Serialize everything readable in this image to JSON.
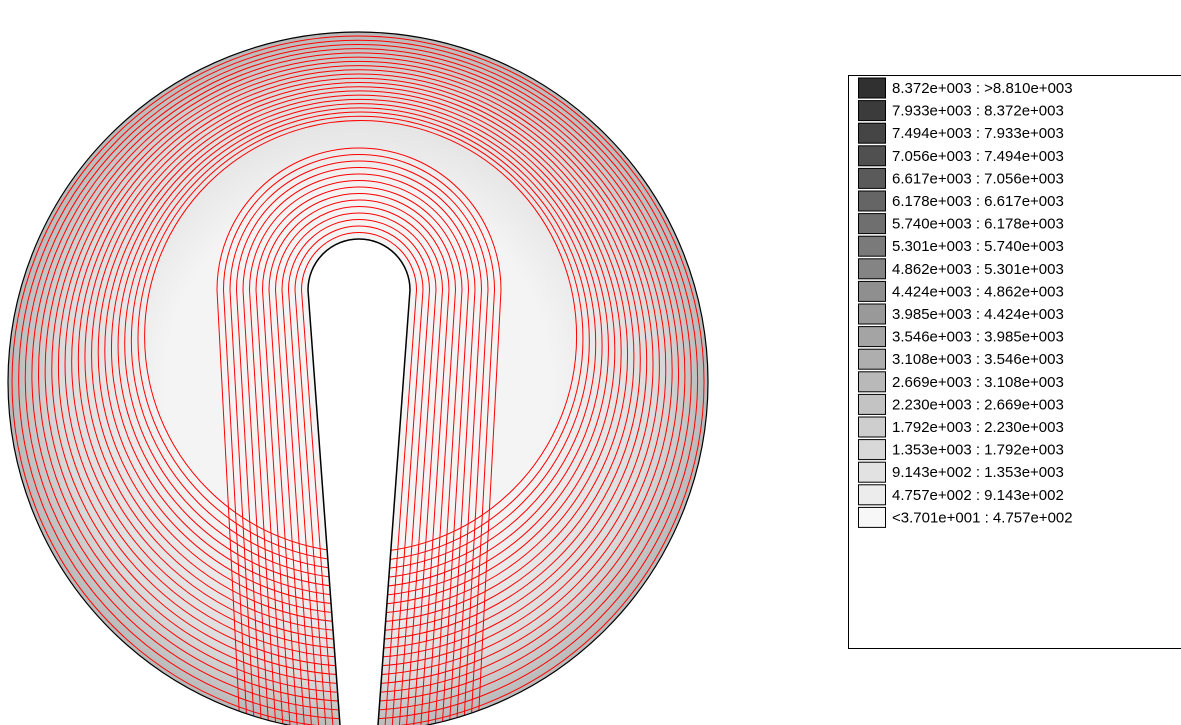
{
  "legend": {
    "entries": [
      {
        "label": "8.372e+003 : >8.810e+003",
        "color": "#2f302f"
      },
      {
        "label": "7.933e+003 : 8.372e+003",
        "color": "#3a3b3a"
      },
      {
        "label": "7.494e+003 : 7.933e+003",
        "color": "#444544"
      },
      {
        "label": "7.056e+003 : 7.494e+003",
        "color": "#4f504f"
      },
      {
        "label": "6.617e+003 : 7.056e+003",
        "color": "#595a59"
      },
      {
        "label": "6.178e+003 : 6.617e+003",
        "color": "#646564"
      },
      {
        "label": "5.740e+003 : 6.178e+003",
        "color": "#6e6f6e"
      },
      {
        "label": "5.301e+003 : 5.740e+003",
        "color": "#797a79"
      },
      {
        "label": "4.862e+003 : 5.301e+003",
        "color": "#838483"
      },
      {
        "label": "4.424e+003 : 4.862e+003",
        "color": "#8e8f8e"
      },
      {
        "label": "3.985e+003 : 4.424e+003",
        "color": "#989998"
      },
      {
        "label": "3.546e+003 : 3.985e+003",
        "color": "#a3a4a3"
      },
      {
        "label": "3.108e+003 : 3.546e+003",
        "color": "#adaead"
      },
      {
        "label": "2.669e+003 : 3.108e+003",
        "color": "#b8b9b8"
      },
      {
        "label": "2.230e+003 : 2.669e+003",
        "color": "#c2c3c2"
      },
      {
        "label": "1.792e+003 : 2.230e+003",
        "color": "#cdcecd"
      },
      {
        "label": "1.353e+003 : 1.792e+003",
        "color": "#d7d8d7"
      },
      {
        "label": "9.143e+002 : 1.353e+003",
        "color": "#e2e2e2"
      },
      {
        "label": "4.757e+002 : 9.143e+002",
        "color": "#ececec"
      },
      {
        "label": "<3.701e+001 : 4.757e+002",
        "color": "#f7f7f7"
      }
    ]
  }
}
